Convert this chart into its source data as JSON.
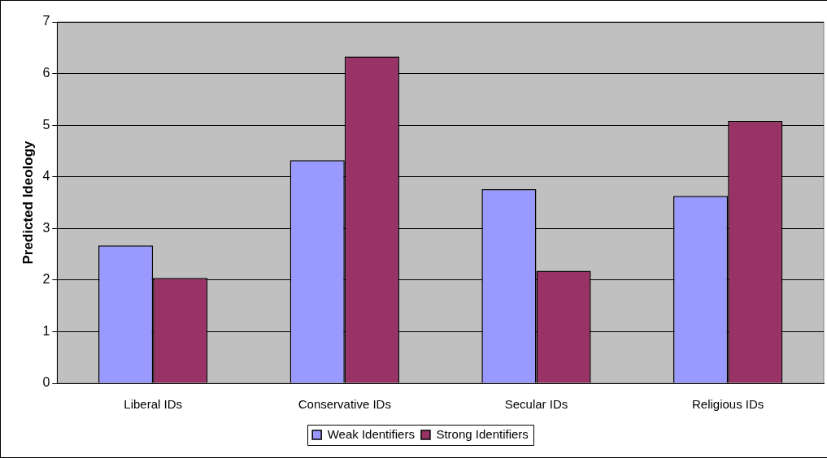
{
  "chart_data": {
    "type": "bar",
    "ylabel": "Predicted Ideology",
    "categories": [
      "Liberal IDs",
      "Conservative IDs",
      "Secular IDs",
      "Religious IDs"
    ],
    "series": [
      {
        "name": "Weak Identifiers",
        "color": "#9999ff",
        "values": [
          2.67,
          4.32,
          3.76,
          3.63
        ]
      },
      {
        "name": "Strong Identifiers",
        "color": "#993366",
        "values": [
          2.04,
          6.33,
          2.18,
          5.08
        ]
      }
    ],
    "ylim": [
      0,
      7
    ],
    "yticks": [
      0,
      1,
      2,
      3,
      4,
      5,
      6,
      7
    ],
    "grid": "y",
    "legend": "bottom"
  }
}
